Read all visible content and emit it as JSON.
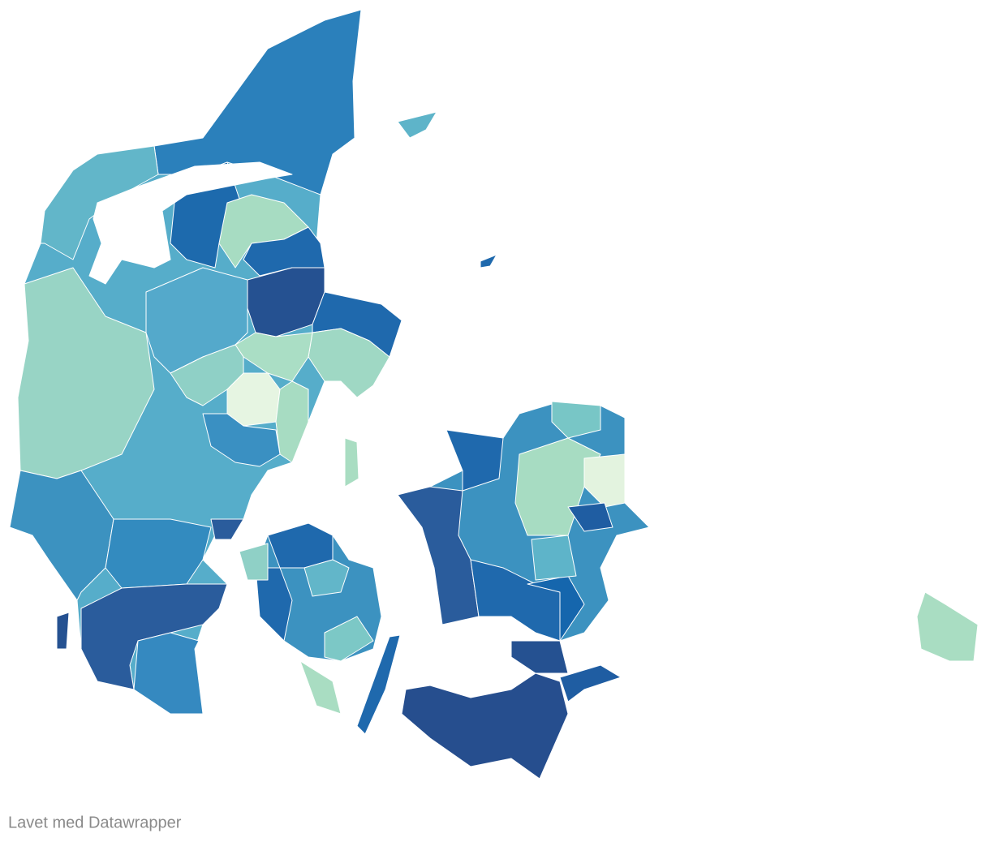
{
  "footer": {
    "credit": "Lavet med Datawrapper"
  }
}
